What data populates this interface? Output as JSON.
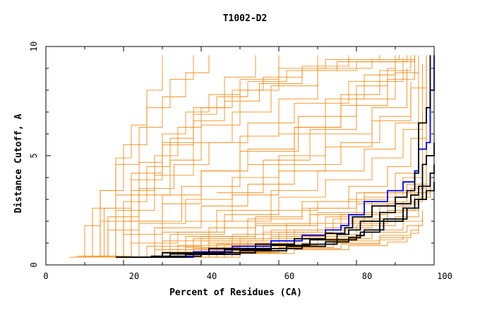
{
  "chart_data": {
    "type": "line",
    "title": "T1002-D2",
    "xlabel": "Percent of Residues (CA)",
    "ylabel": "Distance Cutoff, A",
    "xlim": [
      0,
      100
    ],
    "ylim": [
      0,
      10
    ],
    "xticks": [
      0,
      20,
      40,
      60,
      80,
      100
    ],
    "yticks": [
      0,
      5,
      10
    ],
    "grid": false,
    "background_color": "#f08000",
    "background_curves": [
      {
        "x": [
          6,
          20,
          35,
          50,
          65,
          80,
          88,
          90,
          91
        ],
        "y": [
          0.35,
          2.0,
          3.6,
          5.2,
          6.8,
          8.2,
          9.0,
          9.4,
          9.6
        ]
      },
      {
        "x": [
          8,
          18,
          28,
          38,
          48,
          58,
          70,
          84,
          95
        ],
        "y": [
          0.4,
          2.5,
          4.1,
          5.6,
          7.0,
          8.2,
          9.0,
          9.4,
          9.6
        ]
      },
      {
        "x": [
          10,
          15,
          22,
          30,
          38,
          46,
          55,
          66,
          80,
          93
        ],
        "y": [
          0.4,
          2.6,
          4.2,
          5.5,
          6.6,
          7.5,
          8.3,
          8.9,
          9.3,
          9.6
        ]
      },
      {
        "x": [
          12,
          18,
          24,
          30,
          36,
          42,
          50,
          60,
          72,
          86
        ],
        "y": [
          0.4,
          3.2,
          4.7,
          6.0,
          7.0,
          7.8,
          8.5,
          9.0,
          9.4,
          9.6
        ]
      },
      {
        "x": [
          14,
          20,
          26,
          32,
          38,
          44,
          52,
          62,
          75,
          90
        ],
        "y": [
          0.4,
          2.9,
          4.5,
          5.8,
          6.9,
          7.7,
          8.4,
          8.9,
          9.3,
          9.6
        ]
      },
      {
        "x": [
          16,
          22,
          28,
          34,
          40,
          48,
          56,
          66,
          78
        ],
        "y": [
          0.4,
          3.4,
          5.0,
          6.3,
          7.2,
          8.0,
          8.6,
          9.1,
          9.6
        ]
      },
      {
        "x": [
          9,
          16,
          24,
          33,
          42,
          52,
          64,
          78,
          92
        ],
        "y": [
          0.4,
          2.2,
          3.5,
          4.6,
          5.6,
          6.5,
          7.4,
          8.4,
          9.5
        ]
      },
      {
        "x": [
          11,
          20,
          30,
          40,
          52,
          64,
          76,
          88,
          95
        ],
        "y": [
          0.35,
          2.0,
          3.2,
          4.3,
          5.3,
          6.3,
          7.3,
          8.5,
          9.6
        ]
      },
      {
        "x": [
          13,
          24,
          36,
          48,
          60,
          72,
          84,
          93
        ],
        "y": [
          0.35,
          1.9,
          3.0,
          4.0,
          5.0,
          6.0,
          7.2,
          9.0
        ]
      },
      {
        "x": [
          15,
          28,
          40,
          52,
          64,
          76,
          86,
          94
        ],
        "y": [
          0.35,
          1.7,
          2.7,
          3.7,
          4.6,
          5.6,
          6.8,
          8.4
        ]
      },
      {
        "x": [
          17,
          30,
          44,
          58,
          70,
          82,
          90,
          96
        ],
        "y": [
          0.35,
          1.5,
          2.5,
          3.4,
          4.3,
          5.3,
          6.5,
          8.8
        ]
      },
      {
        "x": [
          19,
          32,
          46,
          60,
          72,
          84,
          92,
          97
        ],
        "y": [
          0.35,
          1.4,
          2.3,
          3.1,
          3.9,
          4.9,
          6.2,
          9.2
        ]
      },
      {
        "x": [
          20,
          36,
          52,
          66,
          78,
          88,
          94,
          98
        ],
        "y": [
          0.35,
          1.3,
          2.1,
          2.9,
          3.6,
          4.5,
          5.8,
          9.5
        ]
      },
      {
        "x": [
          22,
          38,
          54,
          68,
          80,
          90,
          96
        ],
        "y": [
          0.35,
          1.2,
          1.9,
          2.6,
          3.3,
          4.2,
          6.5
        ]
      },
      {
        "x": [
          24,
          40,
          56,
          70,
          82,
          92,
          97
        ],
        "y": [
          0.35,
          1.1,
          1.8,
          2.4,
          3.1,
          4.0,
          7.0
        ]
      },
      {
        "x": [
          26,
          42,
          58,
          72,
          84,
          93,
          98
        ],
        "y": [
          0.35,
          1.0,
          1.6,
          2.2,
          2.9,
          3.7,
          8.0
        ]
      },
      {
        "x": [
          28,
          44,
          60,
          74,
          86,
          94,
          98
        ],
        "y": [
          0.35,
          0.95,
          1.5,
          2.1,
          2.7,
          3.5,
          9.0
        ]
      },
      {
        "x": [
          30,
          46,
          62,
          76,
          88,
          95,
          98
        ],
        "y": [
          0.35,
          0.9,
          1.4,
          1.9,
          2.5,
          3.3,
          9.5
        ]
      },
      {
        "x": [
          18,
          30,
          42,
          54,
          66,
          78,
          88,
          95,
          97
        ],
        "y": [
          0.35,
          1.1,
          1.7,
          2.2,
          2.6,
          3.0,
          3.4,
          3.6,
          3.6
        ]
      },
      {
        "x": [
          20,
          34,
          48,
          62,
          76,
          88,
          96,
          99
        ],
        "y": [
          0.35,
          0.9,
          1.4,
          1.9,
          2.3,
          2.8,
          3.3,
          3.6
        ]
      },
      {
        "x": [
          22,
          36,
          50,
          64,
          78,
          88,
          96,
          99
        ],
        "y": [
          0.35,
          0.8,
          1.2,
          1.6,
          2.0,
          2.5,
          3.1,
          3.6
        ]
      },
      {
        "x": [
          24,
          38,
          52,
          66,
          80,
          90,
          96
        ],
        "y": [
          0.35,
          0.75,
          1.1,
          1.4,
          1.8,
          2.2,
          2.8
        ]
      },
      {
        "x": [
          26,
          40,
          54,
          68,
          82,
          92,
          97
        ],
        "y": [
          0.35,
          0.7,
          1.0,
          1.3,
          1.6,
          2.0,
          2.5
        ]
      },
      {
        "x": [
          28,
          42,
          56,
          70,
          84,
          93,
          97
        ],
        "y": [
          0.35,
          0.65,
          0.9,
          1.2,
          1.5,
          1.8,
          2.2
        ]
      },
      {
        "x": [
          30,
          44,
          58,
          72,
          86,
          94,
          96
        ],
        "y": [
          0.35,
          0.6,
          0.85,
          1.1,
          1.35,
          1.6,
          1.9
        ]
      },
      {
        "x": [
          32,
          46,
          60,
          74,
          86,
          94,
          96
        ],
        "y": [
          0.35,
          0.58,
          0.8,
          1.0,
          1.25,
          1.45,
          1.6
        ]
      },
      {
        "x": [
          34,
          48,
          62,
          76,
          86,
          92
        ],
        "y": [
          0.35,
          0.55,
          0.75,
          0.95,
          1.15,
          1.3
        ]
      },
      {
        "x": [
          36,
          50,
          64,
          78,
          88,
          93
        ],
        "y": [
          0.35,
          0.52,
          0.7,
          0.88,
          1.05,
          1.2
        ]
      },
      {
        "x": [
          10,
          22,
          34,
          46,
          58,
          70,
          82,
          92
        ],
        "y": [
          0.35,
          1.0,
          1.5,
          2.0,
          2.5,
          2.9,
          3.3,
          3.6
        ]
      },
      {
        "x": [
          12,
          26,
          40,
          54,
          68,
          80,
          90,
          96
        ],
        "y": [
          0.35,
          0.85,
          1.3,
          1.8,
          2.3,
          2.8,
          3.3,
          3.6
        ]
      },
      {
        "x": [
          14,
          28,
          42,
          56,
          70,
          82,
          92,
          97
        ],
        "y": [
          0.35,
          0.7,
          1.1,
          1.5,
          1.9,
          2.4,
          2.9,
          3.4
        ]
      },
      {
        "x": [
          16,
          30,
          44,
          58,
          72,
          84,
          93
        ],
        "y": [
          0.35,
          0.6,
          0.95,
          1.3,
          1.7,
          2.1,
          2.6
        ]
      },
      {
        "x": [
          7,
          14,
          22,
          30,
          38,
          46,
          54
        ],
        "y": [
          0.35,
          2.0,
          3.9,
          5.6,
          7.2,
          8.6,
          9.6
        ]
      },
      {
        "x": [
          9,
          16,
          24,
          32,
          40,
          50,
          60
        ],
        "y": [
          0.35,
          1.6,
          3.2,
          4.8,
          6.4,
          8.0,
          9.6
        ]
      },
      {
        "x": [
          12,
          20,
          30,
          40,
          50,
          60,
          70
        ],
        "y": [
          0.35,
          1.4,
          2.8,
          4.3,
          5.9,
          7.6,
          9.6
        ]
      },
      {
        "x": [
          8,
          12,
          18,
          24,
          30,
          36,
          42
        ],
        "y": [
          0.35,
          2.6,
          4.6,
          6.3,
          7.7,
          8.8,
          9.6
        ]
      },
      {
        "x": [
          10,
          14,
          20,
          26,
          32,
          38
        ],
        "y": [
          0.35,
          3.4,
          5.5,
          7.2,
          8.5,
          9.6
        ]
      },
      {
        "x": [
          7,
          10,
          14,
          18,
          22,
          26,
          30
        ],
        "y": [
          0.35,
          1.8,
          3.4,
          4.9,
          6.4,
          8.0,
          9.6
        ]
      },
      {
        "x": [
          36,
          48,
          60,
          72,
          84,
          94,
          98
        ],
        "y": [
          2.0,
          3.2,
          4.3,
          5.4,
          6.6,
          8.1,
          9.6
        ]
      },
      {
        "x": [
          44,
          56,
          68,
          80,
          90,
          96
        ],
        "y": [
          3.3,
          4.8,
          6.2,
          7.6,
          8.8,
          9.6
        ]
      },
      {
        "x": [
          52,
          64,
          76,
          86,
          94
        ],
        "y": [
          4.6,
          6.3,
          7.8,
          8.9,
          9.6
        ]
      },
      {
        "x": [
          60,
          72,
          82,
          90,
          95
        ],
        "y": [
          6.0,
          7.6,
          8.7,
          9.3,
          9.6
        ]
      }
    ],
    "highlight_curves": [
      {
        "color": "#0000ff",
        "x": [
          29,
          38,
          48,
          58,
          66,
          72,
          76,
          78,
          82,
          88,
          92,
          95,
          96,
          98,
          99,
          99,
          100,
          100
        ],
        "y": [
          0.35,
          0.6,
          0.85,
          1.1,
          1.35,
          1.6,
          1.8,
          2.3,
          2.9,
          3.4,
          3.8,
          4.3,
          5.3,
          5.6,
          6.1,
          8.0,
          9.0,
          9.6
        ]
      },
      {
        "color": "#000000",
        "x": [
          18,
          30,
          42,
          54,
          64,
          72,
          77,
          79,
          84,
          90,
          93,
          95,
          96,
          98,
          99,
          99
        ],
        "y": [
          0.35,
          0.55,
          0.75,
          0.95,
          1.2,
          1.45,
          1.7,
          2.2,
          2.7,
          3.1,
          3.4,
          4.2,
          6.5,
          7.2,
          9.1,
          9.6
        ]
      },
      {
        "color": "#000000",
        "x": [
          18,
          32,
          46,
          58,
          68,
          75,
          78,
          81,
          86,
          90,
          94,
          96,
          97,
          98,
          100
        ],
        "y": [
          0.35,
          0.5,
          0.7,
          0.9,
          1.15,
          1.4,
          1.6,
          2.0,
          2.4,
          2.8,
          3.2,
          3.6,
          4.6,
          5.0,
          5.6
        ]
      },
      {
        "color": "#000000",
        "x": [
          22,
          36,
          50,
          62,
          72,
          78,
          81,
          86,
          92,
          95,
          97,
          99,
          100
        ],
        "y": [
          0.35,
          0.48,
          0.65,
          0.85,
          1.05,
          1.25,
          1.5,
          2.0,
          2.6,
          3.0,
          3.6,
          4.2,
          4.6
        ]
      },
      {
        "color": "#000000",
        "x": [
          27,
          40,
          54,
          66,
          75,
          80,
          82,
          87,
          93,
          96,
          98,
          100
        ],
        "y": [
          0.4,
          0.55,
          0.75,
          0.95,
          1.15,
          1.35,
          1.6,
          2.1,
          2.6,
          3.0,
          3.4,
          3.8
        ]
      }
    ]
  }
}
